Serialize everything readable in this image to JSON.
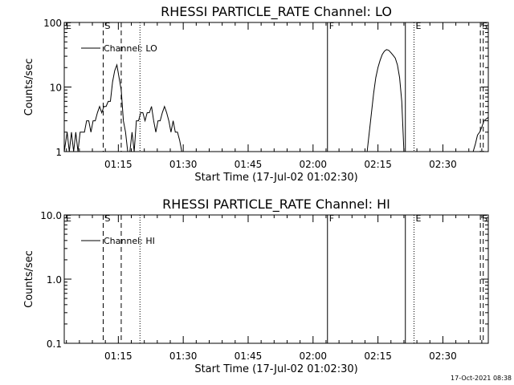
{
  "timestamp": "17-Oct-2021 08:38",
  "chart_data": [
    {
      "type": "line",
      "title": "RHESSI PARTICLE_RATE Channel: LO",
      "xlabel": "Start Time (17-Jul-02 01:02:30)",
      "ylabel": "Counts/sec",
      "y_scale": "log",
      "ylim": [
        1,
        100
      ],
      "ytick_values": [
        1,
        10,
        100
      ],
      "ytick_labels": [
        "1",
        "10",
        "100"
      ],
      "xlim": [
        "01:02:30",
        "02:40:30"
      ],
      "xtick_labels": [
        "01:15",
        "01:30",
        "01:45",
        "02:00",
        "02:15",
        "02:30"
      ],
      "grid": false,
      "legend_position": "top-left",
      "legend": [
        "Channel: LO"
      ],
      "markers": [
        {
          "label": "E",
          "time": "01:02:30",
          "style": "none"
        },
        {
          "label": "S",
          "time": "01:11:30",
          "style": "dashed"
        },
        {
          "label": "",
          "time": "01:15:40",
          "style": "dashed"
        },
        {
          "label": "",
          "time": "01:20:00",
          "style": "dotted"
        },
        {
          "label": "F",
          "time": "02:03:20",
          "style": "solid"
        },
        {
          "label": "",
          "time": "02:21:20",
          "style": "solid"
        },
        {
          "label": "E",
          "time": "02:23:20",
          "style": "dotted"
        },
        {
          "label": "S",
          "time": "02:38:40",
          "style": "dashed"
        },
        {
          "label": "",
          "time": "02:39:20",
          "style": "dashed"
        }
      ],
      "series": [
        {
          "x": [
            "01:02:30",
            "01:03:10",
            "01:03:40",
            "01:04:10",
            "01:04:40",
            "01:05:10",
            "01:05:40",
            "01:06:10",
            "01:06:40",
            "01:07:10",
            "01:07:40",
            "01:08:10",
            "01:08:40",
            "01:09:10",
            "01:09:40",
            "01:10:10",
            "01:10:40",
            "01:11:10",
            "01:11:40",
            "01:12:10",
            "01:12:40",
            "01:13:10",
            "01:13:40",
            "01:14:10",
            "01:14:40",
            "01:15:10",
            "01:15:40",
            "01:16:10",
            "01:16:40",
            "01:17:10",
            "01:17:40",
            "01:18:10",
            "01:18:40",
            "01:19:10",
            "01:19:40",
            "01:20:10",
            "01:20:40",
            "01:21:10",
            "01:21:40",
            "01:22:10",
            "01:22:40",
            "01:23:10",
            "01:23:40",
            "01:24:10",
            "01:24:40",
            "01:25:10",
            "01:25:40",
            "01:26:10",
            "01:26:40",
            "01:27:10",
            "01:27:40",
            "01:28:10",
            "01:28:40",
            "01:29:10",
            "01:29:40"
          ],
          "values": [
            1,
            2,
            1,
            2,
            1,
            2,
            1,
            2,
            2,
            2,
            3,
            3,
            2,
            3,
            3,
            4,
            5,
            4,
            5,
            5,
            6,
            6,
            12,
            18,
            22,
            14,
            9,
            3,
            2,
            1,
            1,
            2,
            1,
            3,
            3,
            4,
            4,
            3,
            4,
            4,
            5,
            3,
            2,
            3,
            3,
            4,
            5,
            4,
            3,
            2,
            3,
            2,
            2,
            1.5,
            1
          ]
        },
        {
          "x": [
            "02:12:30",
            "02:13:00",
            "02:13:30",
            "02:14:00",
            "02:14:30",
            "02:15:00",
            "02:15:30",
            "02:16:00",
            "02:16:30",
            "02:17:00",
            "02:17:30",
            "02:18:00",
            "02:18:30",
            "02:19:00",
            "02:19:30",
            "02:20:00",
            "02:20:30",
            "02:21:00"
          ],
          "values": [
            1,
            2,
            4,
            8,
            14,
            20,
            26,
            32,
            36,
            38,
            37,
            34,
            31,
            28,
            22,
            14,
            6,
            1
          ]
        },
        {
          "x": [
            "02:37:00",
            "02:37:30",
            "02:38:00",
            "02:38:30",
            "02:39:00",
            "02:39:30",
            "02:40:00",
            "02:40:30"
          ],
          "values": [
            1,
            1.3,
            1.8,
            2,
            2.4,
            3,
            3.2,
            3.4
          ]
        }
      ]
    },
    {
      "type": "line",
      "title": "RHESSI PARTICLE_RATE Channel: HI",
      "xlabel": "Start Time (17-Jul-02 01:02:30)",
      "ylabel": "Counts/sec",
      "y_scale": "log",
      "ylim": [
        0.1,
        10
      ],
      "ytick_values": [
        0.1,
        1,
        10
      ],
      "ytick_labels": [
        "0.1",
        "1.0",
        "10.0"
      ],
      "xlim": [
        "01:02:30",
        "02:40:30"
      ],
      "xtick_labels": [
        "01:15",
        "01:30",
        "01:45",
        "02:00",
        "02:15",
        "02:30"
      ],
      "grid": false,
      "legend_position": "top-left",
      "legend": [
        "Channel: HI"
      ],
      "markers": [
        {
          "label": "E",
          "time": "01:02:30",
          "style": "none"
        },
        {
          "label": "S",
          "time": "01:11:30",
          "style": "dashed"
        },
        {
          "label": "",
          "time": "01:15:40",
          "style": "dashed"
        },
        {
          "label": "",
          "time": "01:20:00",
          "style": "dotted"
        },
        {
          "label": "F",
          "time": "02:03:20",
          "style": "solid"
        },
        {
          "label": "",
          "time": "02:21:20",
          "style": "solid"
        },
        {
          "label": "E",
          "time": "02:23:20",
          "style": "dotted"
        },
        {
          "label": "S",
          "time": "02:38:40",
          "style": "dashed"
        },
        {
          "label": "",
          "time": "02:39:20",
          "style": "dashed"
        }
      ],
      "series": []
    }
  ]
}
